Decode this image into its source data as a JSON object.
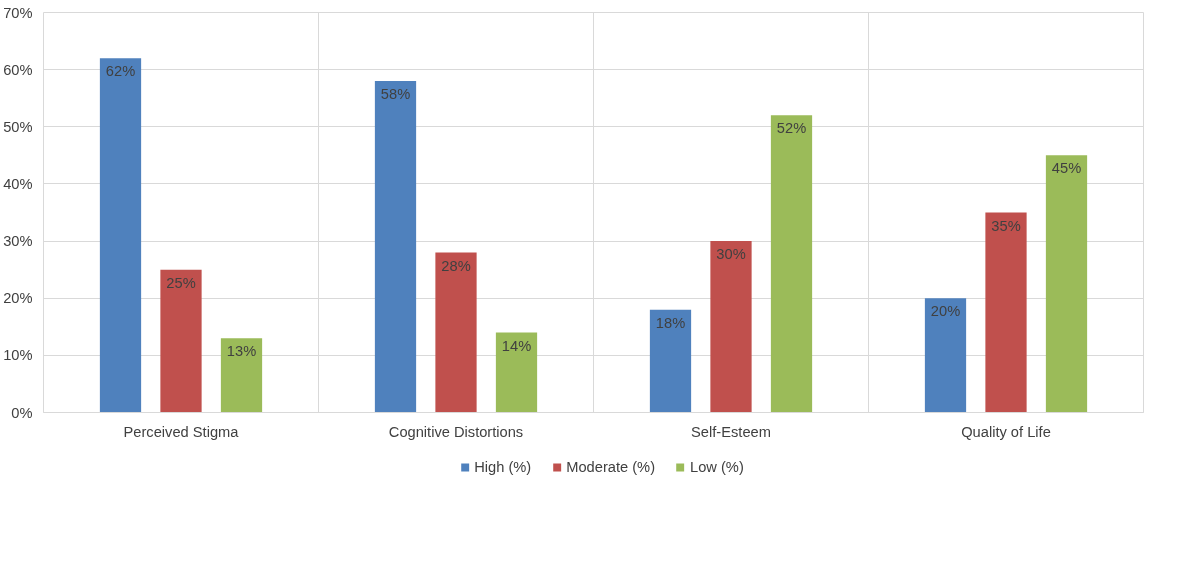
{
  "chart_data": {
    "type": "bar",
    "categories": [
      "Perceived Stigma",
      "Cognitive Distortions",
      "Self-Esteem",
      "Quality of Life"
    ],
    "series": [
      {
        "name": "High (%)",
        "color": "#4f81bd",
        "values": [
          62,
          58,
          18,
          20
        ],
        "value_labels": [
          "62%",
          "58%",
          "18%",
          "20%"
        ]
      },
      {
        "name": "Moderate (%)",
        "color": "#c0504d",
        "values": [
          25,
          28,
          30,
          35
        ],
        "value_labels": [
          "25%",
          "28%",
          "30%",
          "35%"
        ]
      },
      {
        "name": "Low (%)",
        "color": "#9bbb59",
        "values": [
          13,
          14,
          52,
          45
        ],
        "value_labels": [
          "13%",
          "14%",
          "52%",
          "45%"
        ]
      }
    ],
    "ylim": [
      0,
      70
    ],
    "yticks": [
      {
        "value": 0,
        "label": "0%"
      },
      {
        "value": 10,
        "label": "10%"
      },
      {
        "value": 20,
        "label": "20%"
      },
      {
        "value": 30,
        "label": "30%"
      },
      {
        "value": 40,
        "label": "40%"
      },
      {
        "value": 50,
        "label": "50%"
      },
      {
        "value": 60,
        "label": "60%"
      },
      {
        "value": 70,
        "label": "70%"
      }
    ],
    "grid": true,
    "legend": "bottom"
  }
}
